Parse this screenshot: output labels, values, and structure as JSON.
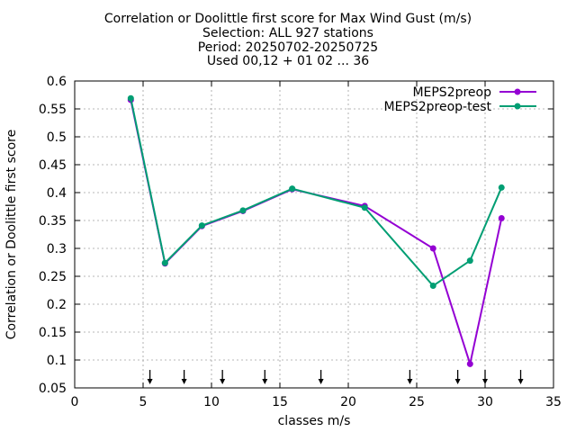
{
  "chart_data": {
    "type": "line",
    "title_lines": [
      "Correlation or Doolittle first score  for Max Wind Gust (m/s)",
      "Selection: ALL    927 stations",
      "Period: 20250702-20250725",
      "Used 00,12 + 01 02 ... 36"
    ],
    "xlabel": "classes m/s",
    "ylabel": "Correlation or Doolittle first score",
    "xlim": [
      0,
      35
    ],
    "ylim": [
      0.05,
      0.6
    ],
    "x_ticks": [
      0,
      5,
      10,
      15,
      20,
      25,
      30,
      35
    ],
    "y_ticks": [
      0.05,
      0.1,
      0.15,
      0.2,
      0.25,
      0.3,
      0.35,
      0.4,
      0.45,
      0.5,
      0.55,
      0.6
    ],
    "x_tick_labels": [
      "0",
      "5",
      "10",
      "15",
      "20",
      "25",
      "30",
      "35"
    ],
    "y_tick_labels": [
      "0.05",
      "0.1",
      "0.15",
      "0.2",
      "0.25",
      "0.3",
      "0.35",
      "0.4",
      "0.45",
      "0.5",
      "0.55",
      "0.6"
    ],
    "grid": true,
    "legend_position": "top-right",
    "class_markers_x": [
      5.5,
      8.0,
      10.8,
      13.9,
      18.0,
      24.5,
      28.0,
      30.0,
      32.6
    ],
    "series": [
      {
        "name": "MEPS2preop",
        "color": "#9400d3",
        "x": [
          4.1,
          6.6,
          9.3,
          12.3,
          15.9,
          21.2,
          26.2,
          28.9,
          31.2
        ],
        "y": [
          0.566,
          0.273,
          0.34,
          0.367,
          0.406,
          0.376,
          0.3,
          0.093,
          0.354
        ]
      },
      {
        "name": "MEPS2preop-test",
        "color": "#009e73",
        "x": [
          4.1,
          6.6,
          9.3,
          12.3,
          15.9,
          21.2,
          26.2,
          28.9,
          31.2
        ],
        "y": [
          0.569,
          0.274,
          0.341,
          0.368,
          0.407,
          0.373,
          0.233,
          0.278,
          0.409
        ]
      }
    ]
  }
}
